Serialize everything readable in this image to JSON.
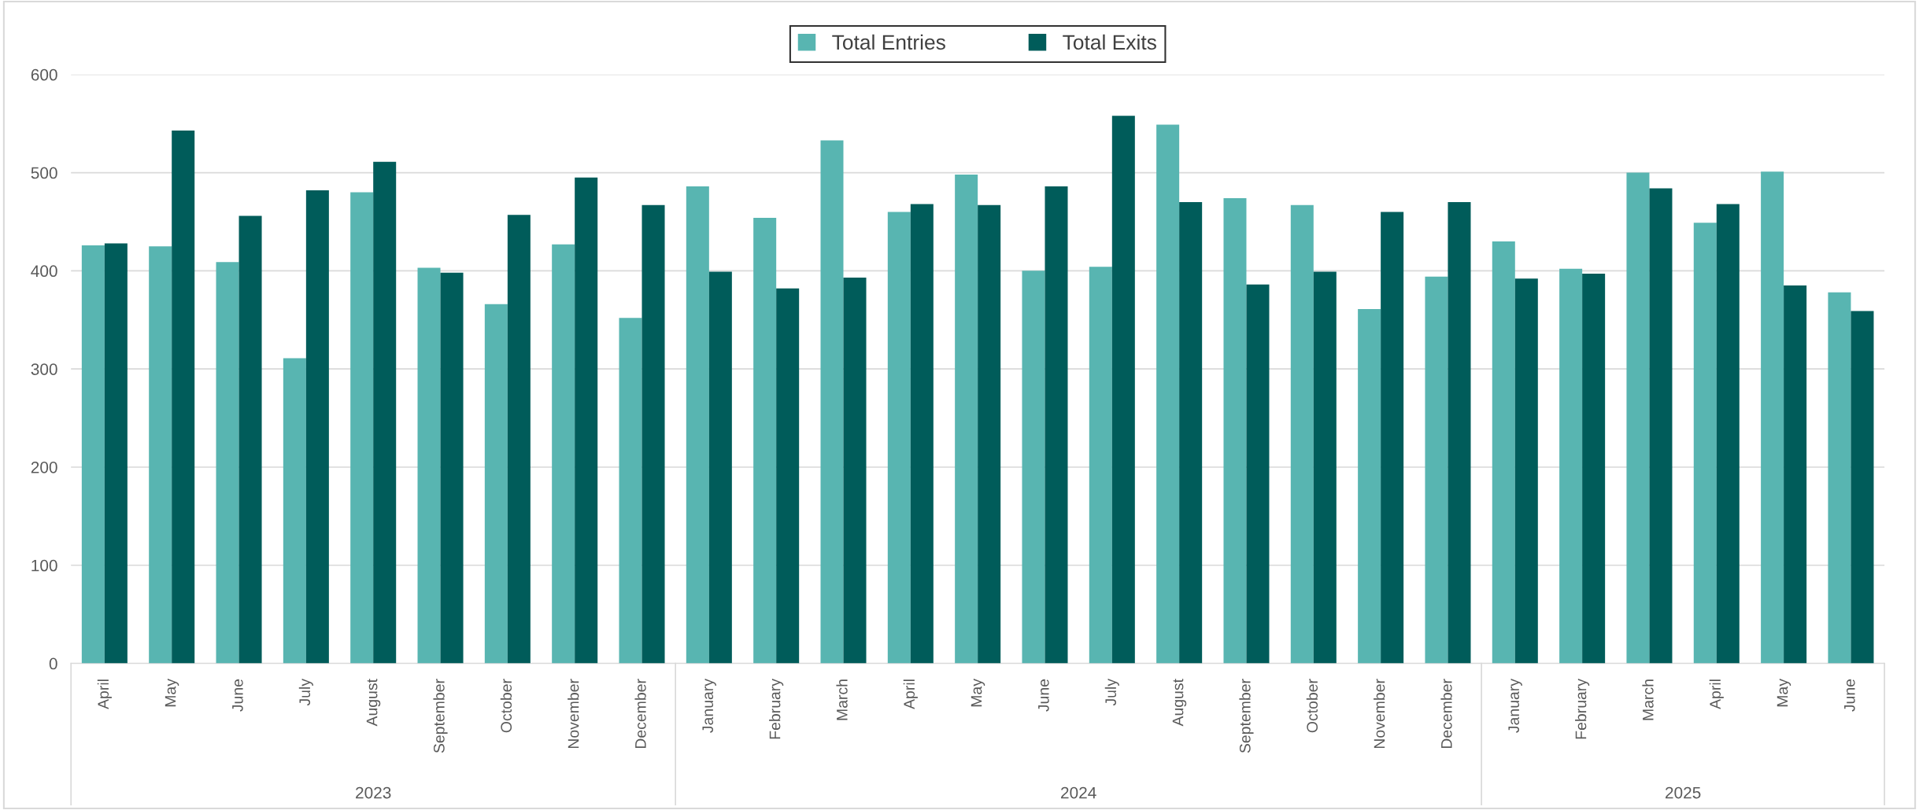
{
  "chart_data": {
    "type": "bar",
    "categories": [
      "April",
      "May",
      "June",
      "July",
      "August",
      "September",
      "October",
      "November",
      "December",
      "January",
      "February",
      "March",
      "April",
      "May",
      "June",
      "July",
      "August",
      "September",
      "October",
      "November",
      "December",
      "January",
      "February",
      "March",
      "April",
      "May",
      "June"
    ],
    "series": [
      {
        "name": "Total Entries",
        "color": "#58b5b1",
        "values": [
          426,
          425,
          409,
          311,
          480,
          403,
          366,
          427,
          352,
          486,
          454,
          533,
          460,
          498,
          400,
          404,
          549,
          474,
          467,
          361,
          394,
          430,
          402,
          500,
          449,
          501,
          378
        ]
      },
      {
        "name": "Total Exits",
        "color": "#005c5a",
        "values": [
          428,
          543,
          456,
          482,
          511,
          398,
          457,
          495,
          467,
          399,
          382,
          393,
          468,
          467,
          486,
          558,
          470,
          386,
          399,
          460,
          470,
          392,
          397,
          484,
          468,
          385,
          359
        ]
      }
    ],
    "annotations": [
      "2023",
      "2024",
      "2025"
    ],
    "ylim": [
      0,
      600
    ],
    "yticks": [
      0,
      100,
      200,
      300,
      400,
      500,
      600
    ],
    "grid": "y",
    "legend": "top"
  }
}
